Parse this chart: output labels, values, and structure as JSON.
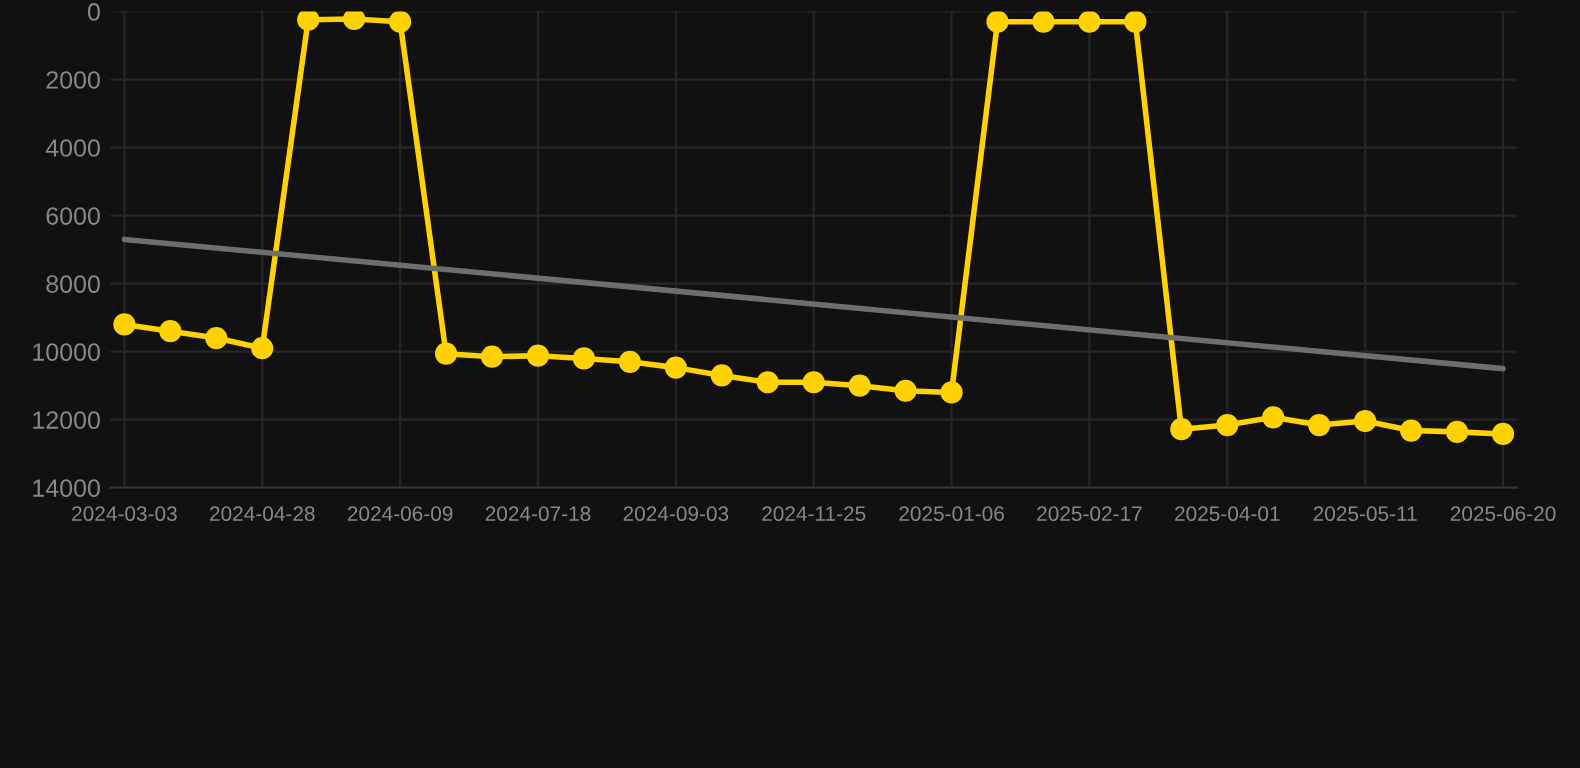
{
  "chart_data": {
    "type": "line",
    "categories": [
      "2024-03-03",
      null,
      null,
      "2024-04-28",
      null,
      null,
      "2024-06-09",
      null,
      null,
      "2024-07-18",
      null,
      null,
      "2024-09-03",
      null,
      null,
      "2024-11-25",
      null,
      null,
      "2025-01-06",
      null,
      null,
      "2025-02-17",
      null,
      null,
      "2025-04-01",
      null,
      null,
      "2025-05-11",
      null,
      null,
      "2025-06-20"
    ],
    "series": [
      {
        "color": "#ffd200",
        "marker": "circle",
        "values": [
          9200,
          9400,
          9600,
          9900,
          240,
          220,
          300,
          10060,
          10150,
          10120,
          10200,
          10300,
          10470,
          10700,
          10900,
          10900,
          11000,
          11150,
          11200,
          300,
          300,
          300,
          300,
          12280,
          12160,
          11930,
          12160,
          12040,
          12320,
          12360,
          12420
        ]
      },
      {
        "color": "#6e6e6e",
        "marker": "none",
        "values": [
          6700,
          null,
          null,
          null,
          null,
          null,
          null,
          null,
          null,
          null,
          null,
          null,
          null,
          null,
          null,
          null,
          null,
          null,
          null,
          null,
          null,
          null,
          null,
          null,
          null,
          null,
          null,
          null,
          null,
          null,
          10500
        ]
      }
    ],
    "ylim": [
      14000,
      0
    ],
    "yticks": [
      0,
      2000,
      4000,
      6000,
      8000,
      10000,
      12000,
      14000
    ],
    "grid": true,
    "line_style": "solid",
    "legend": false
  }
}
